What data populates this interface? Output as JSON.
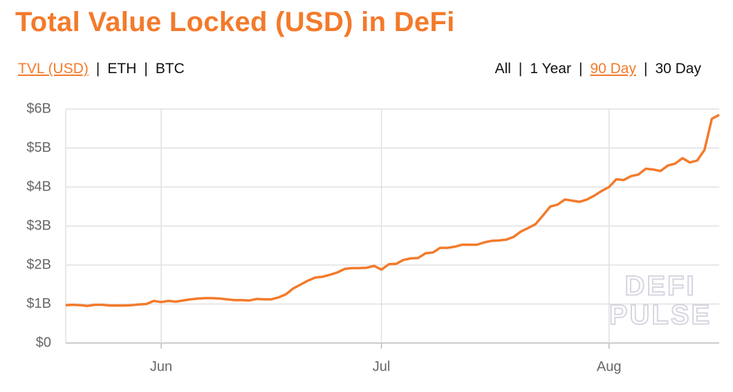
{
  "chart_data": {
    "type": "line",
    "title": "Total Value Locked (USD) in DeFi",
    "metric_tabs": [
      "TVL (USD)",
      "ETH",
      "BTC"
    ],
    "active_metric": 0,
    "range_tabs": [
      "All",
      "1 Year",
      "90 Day",
      "30 Day"
    ],
    "active_range": 2,
    "watermark": [
      "DEFI",
      "PULSE"
    ],
    "categories": [
      null,
      null,
      null,
      null,
      null,
      null,
      null,
      null,
      null,
      null,
      null,
      null,
      null,
      "Jun",
      null,
      null,
      null,
      null,
      null,
      null,
      null,
      null,
      null,
      null,
      null,
      null,
      null,
      null,
      null,
      null,
      null,
      null,
      null,
      null,
      null,
      null,
      null,
      null,
      null,
      null,
      null,
      null,
      null,
      "Jul",
      null,
      null,
      null,
      null,
      null,
      null,
      null,
      null,
      null,
      null,
      null,
      null,
      null,
      null,
      null,
      null,
      null,
      null,
      null,
      null,
      null,
      null,
      null,
      null,
      null,
      null,
      null,
      null,
      null,
      null,
      "Aug",
      null,
      null,
      null,
      null,
      null,
      null,
      null,
      null,
      null,
      null,
      null,
      null,
      null,
      null,
      null
    ],
    "series": [
      {
        "name": "TVL (USD)",
        "color": "#f37a2b",
        "values": [
          0.97,
          0.98,
          0.97,
          0.95,
          0.98,
          0.98,
          0.96,
          0.96,
          0.96,
          0.97,
          0.99,
          1.0,
          1.08,
          1.05,
          1.08,
          1.06,
          1.09,
          1.12,
          1.14,
          1.15,
          1.15,
          1.14,
          1.12,
          1.1,
          1.1,
          1.09,
          1.13,
          1.12,
          1.12,
          1.17,
          1.25,
          1.4,
          1.5,
          1.6,
          1.68,
          1.7,
          1.75,
          1.81,
          1.9,
          1.92,
          1.92,
          1.93,
          1.98,
          1.88,
          2.02,
          2.03,
          2.13,
          2.17,
          2.18,
          2.3,
          2.32,
          2.44,
          2.44,
          2.47,
          2.52,
          2.52,
          2.52,
          2.58,
          2.62,
          2.63,
          2.65,
          2.72,
          2.86,
          2.95,
          3.05,
          3.27,
          3.5,
          3.55,
          3.68,
          3.65,
          3.62,
          3.68,
          3.78,
          3.9,
          4.0,
          4.2,
          4.18,
          4.28,
          4.32,
          4.47,
          4.45,
          4.41,
          4.55,
          4.6,
          4.74,
          4.63,
          4.68,
          4.95,
          5.75,
          5.85
        ]
      }
    ],
    "ylim": [
      0,
      6
    ],
    "yticks": [
      {
        "value": 0,
        "label": "$0"
      },
      {
        "value": 1,
        "label": "$1B"
      },
      {
        "value": 2,
        "label": "$2B"
      },
      {
        "value": 3,
        "label": "$3B"
      },
      {
        "value": 4,
        "label": "$4B"
      },
      {
        "value": 5,
        "label": "$5B"
      },
      {
        "value": 6,
        "label": "$6B"
      }
    ],
    "grid": true
  }
}
